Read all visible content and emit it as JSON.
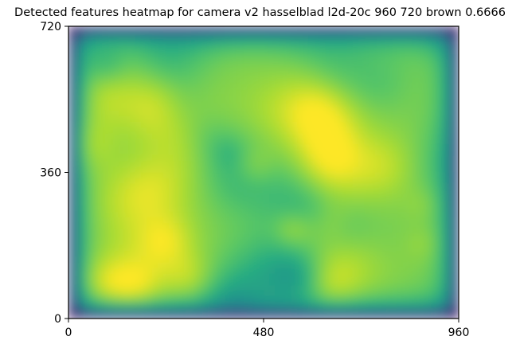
{
  "chart_data": {
    "type": "heatmap",
    "title": "Detected features heatmap for camera v2 hasselblad l2d-20c 960 720 brown 0.6666",
    "xlabel": "",
    "ylabel": "",
    "xlim": [
      0,
      960
    ],
    "ylim": [
      0,
      720
    ],
    "x_ticks": [
      "0",
      "480",
      "960"
    ],
    "y_ticks": [
      "0",
      "360",
      "720"
    ],
    "colormap": "viridis",
    "grid": false,
    "colorbar": false,
    "description_values": {
      "center_region": "high (yellow-green)",
      "edges": "low (dark purple/blue)"
    }
  }
}
